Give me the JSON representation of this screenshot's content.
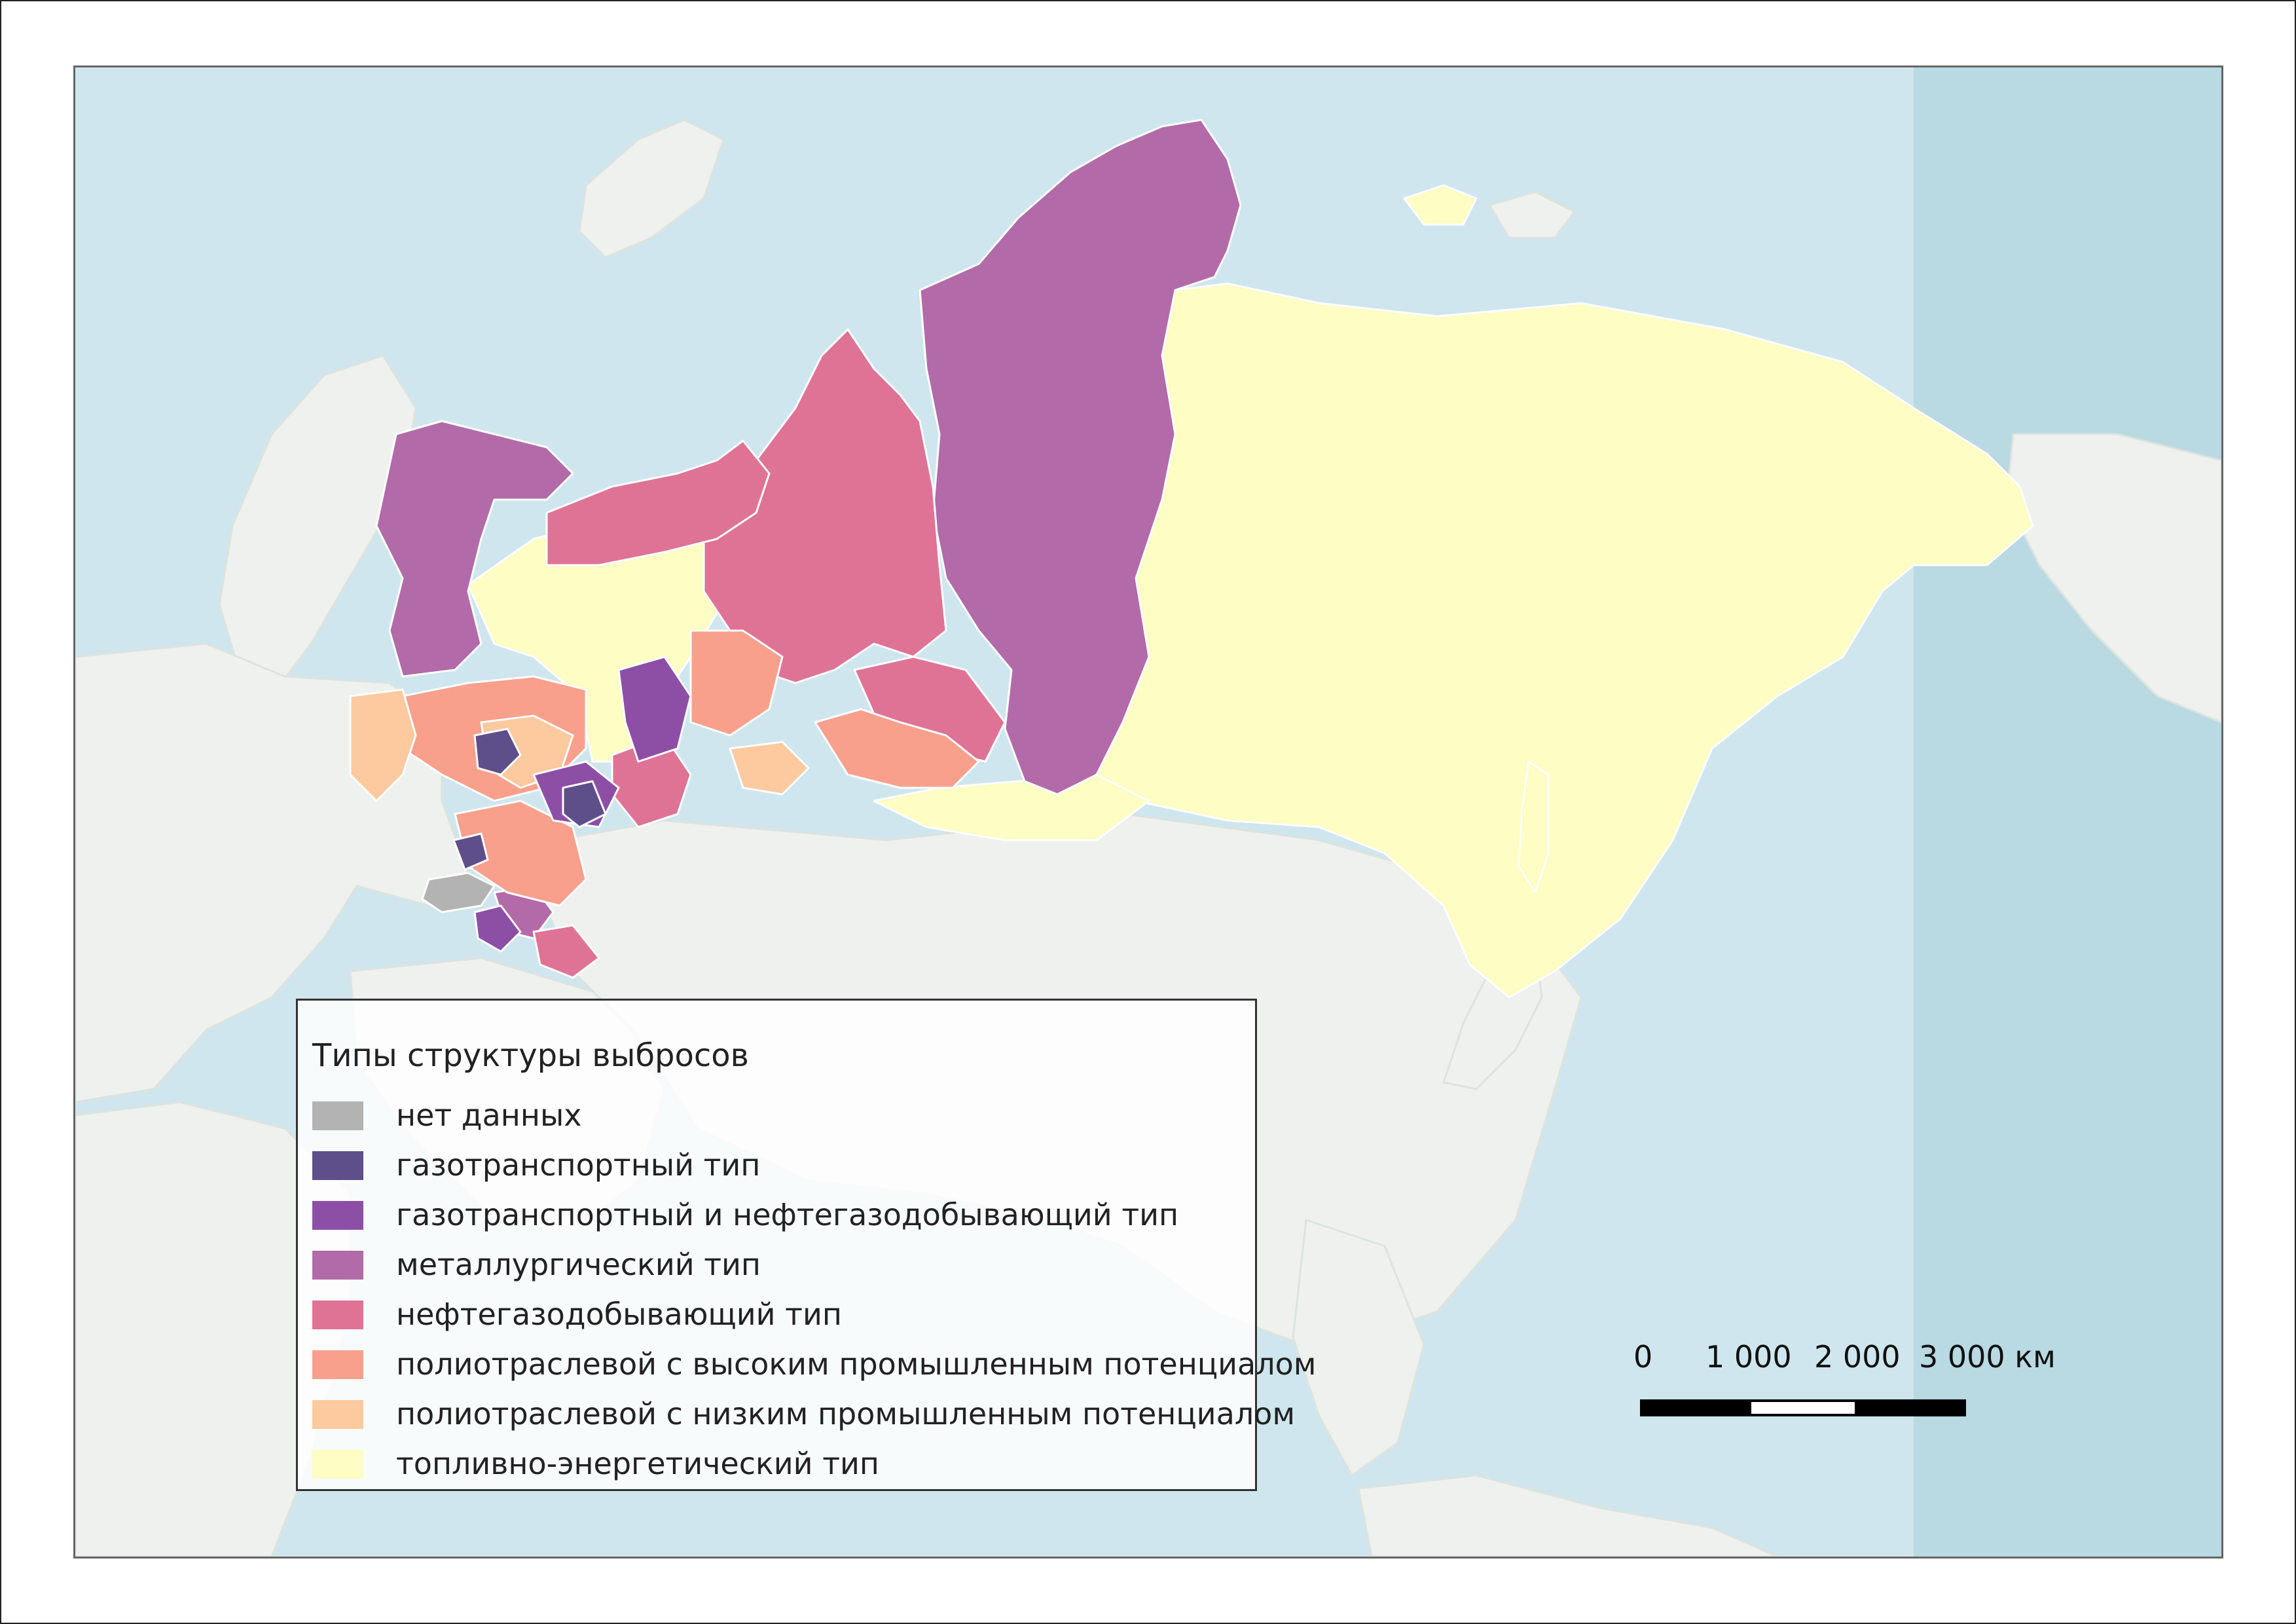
{
  "legend": {
    "title": "Типы структуры выбросов",
    "items": [
      {
        "label": "нет данных",
        "color": "#b3b3b3"
      },
      {
        "label": "газотранспортный тип",
        "color": "#5e4f8a"
      },
      {
        "label": "газотранспортный и нефтегазодобывающий тип",
        "color": "#8d4fa6"
      },
      {
        "label": "металлургический тип",
        "color": "#b36aa8"
      },
      {
        "label": "нефтегазодобывающий тип",
        "color": "#de7396"
      },
      {
        "label": "полиотраслевой с высоким промышленным потенциалом",
        "color": "#f8a08c"
      },
      {
        "label": "полиотраслевой с низким промышленным потенциалом",
        "color": "#fdc99e"
      },
      {
        "label": "топливно-энергетический тип",
        "color": "#fdfdc4"
      }
    ]
  },
  "scale": {
    "ticks": [
      "0",
      "1 000",
      "2 000",
      "3 000 км"
    ]
  },
  "colors": {
    "water": "#cfe6ee",
    "water_dark": "#b9d9e3",
    "land": "#eef1ee",
    "border": "#ffffff"
  }
}
